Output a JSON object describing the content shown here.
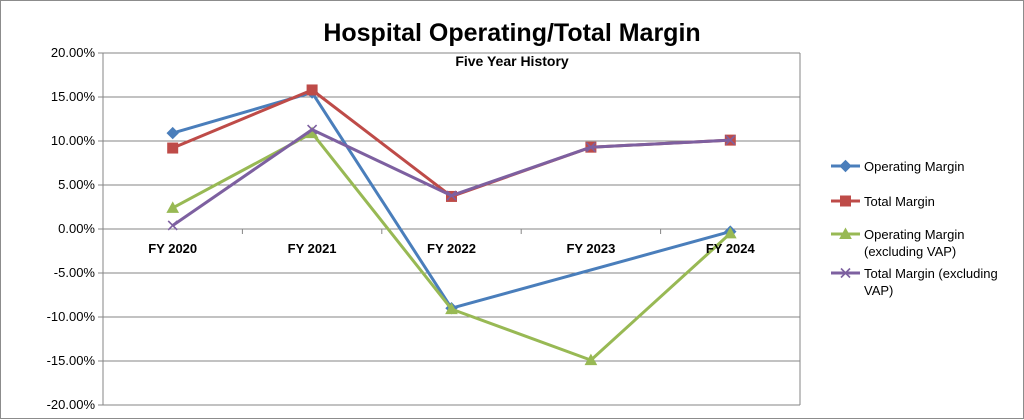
{
  "chart_data": {
    "type": "line",
    "title": "Hospital Operating/Total Margin",
    "subtitle": "Five Year History",
    "categories": [
      "FY 2020",
      "FY 2021",
      "FY 2022",
      "FY 2023",
      "FY 2024"
    ],
    "ylim": [
      -20,
      20
    ],
    "yticks": [
      20,
      15,
      10,
      5,
      0,
      -5,
      -10,
      -15,
      -20
    ],
    "ytick_labels": [
      "20.00%",
      "15.00%",
      "10.00%",
      "5.00%",
      "0.00%",
      "-5.00%",
      "-10.00%",
      "-15.00%",
      "-20.00%"
    ],
    "grid": true,
    "legend_position": "right",
    "series": [
      {
        "name": "Operating Margin",
        "values": [
          10.9,
          15.5,
          -9.0,
          null,
          -0.3
        ],
        "color": "#4a7ebb",
        "marker": "diamond"
      },
      {
        "name": "Total Margin",
        "values": [
          9.2,
          15.8,
          3.7,
          9.3,
          10.1
        ],
        "color": "#be4b48",
        "marker": "square"
      },
      {
        "name": "Operating Margin (excluding VAP)",
        "values": [
          2.4,
          10.9,
          -9.1,
          -14.9,
          -0.5
        ],
        "color": "#98b954",
        "marker": "triangle"
      },
      {
        "name": "Total Margin (excluding VAP)",
        "values": [
          0.4,
          11.3,
          3.8,
          9.3,
          10.1
        ],
        "color": "#7d60a0",
        "marker": "x"
      }
    ],
    "legend_lines": [
      [
        "Operating Margin"
      ],
      [
        "Total Margin"
      ],
      [
        "Operating Margin",
        "(excluding VAP)"
      ],
      [
        "Total Margin (excluding",
        "VAP)"
      ]
    ]
  }
}
